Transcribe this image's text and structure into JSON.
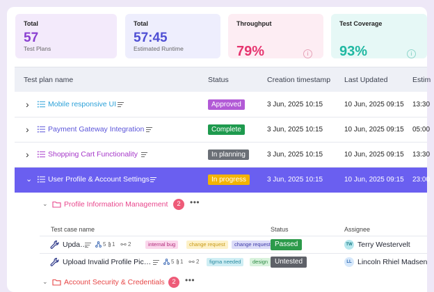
{
  "stats": {
    "total_plans": {
      "label": "Total",
      "value": "57",
      "sub": "Test Plans"
    },
    "total_runtime": {
      "label": "Total",
      "value": "57:45",
      "sub": "Estimated Runtime"
    },
    "throughput": {
      "label": "Throughput",
      "value": "79%"
    },
    "coverage": {
      "label": "Test Coverage",
      "value": "93%"
    }
  },
  "info_glyph": "i",
  "table": {
    "headers": [
      "Test plan name",
      "Status",
      "Creation timestamp",
      "Last Updated",
      "Estim"
    ],
    "rows": [
      {
        "name": "Mobile responsive UI",
        "status": "Approved",
        "status_color": "#b25ad6",
        "name_color": "#2aa0d8",
        "created": "3 Jun, 2025 10:15",
        "updated": "10 Jun, 2025 09:15",
        "estimate": "13:30",
        "chevron": "›"
      },
      {
        "name": "Payment Gateway Integration",
        "status": "Complete",
        "status_color": "#1e9a4e",
        "name_color": "#5a54d9",
        "created": "3 Jun, 2025 10:15",
        "updated": "10 Jun, 2025 09:15",
        "estimate": "05:00",
        "chevron": "›"
      },
      {
        "name": "Shopping Cart Functionality",
        "status": "In planning",
        "status_color": "#6b6f76",
        "name_color": "#a537c9",
        "created": "3 Jun, 2025 10:15",
        "updated": "10 Jun, 2025 09:15",
        "estimate": "13:30",
        "chevron": "›"
      },
      {
        "name": "User Profile & Account Settings",
        "status": "In progress",
        "status_color": "#f3b300",
        "name_color": "#ffffff",
        "created": "3 Jun, 2025 10:15",
        "updated": "10 Jun, 2025 09:15",
        "estimate": "23:00",
        "chevron": "⌄"
      }
    ]
  },
  "sections": [
    {
      "name": "Profile Information Management",
      "count": "2",
      "color": "#e8468c",
      "chevron": "⌄",
      "more": "•••"
    },
    {
      "name": "Account Security & Credentials",
      "count": "2",
      "color": "#e64545",
      "chevron": "⌄",
      "more": "•••"
    }
  ],
  "test_cases": {
    "headers": [
      "Test case name",
      "Status",
      "Assignee"
    ],
    "rows": [
      {
        "name": "Upda…",
        "steps": "5",
        "attachments": "1",
        "links": "2",
        "tags": [
          {
            "label": "internal bug",
            "bg": "#fbd7ec",
            "fg": "#b02b7a"
          },
          {
            "label": "change request",
            "bg": "#fdf1c8",
            "fg": "#c89a14"
          },
          {
            "label": "change request",
            "bg": "#dcdcf8",
            "fg": "#3d3aa8"
          }
        ],
        "status": "Passed",
        "status_color": "#2c9a4a",
        "assignee": "Terry Westervelt",
        "initials": "TW",
        "avatar_bg": "#b8e8ee",
        "avatar_fg": "#1a7a86"
      },
      {
        "name": "Upload Invalid Profile Pic…",
        "steps": "5",
        "attachments": "1",
        "links": "2",
        "tags": [
          {
            "label": "figma needed",
            "bg": "#cfeef4",
            "fg": "#2a8aa0"
          },
          {
            "label": "design",
            "bg": "#d8f2dc",
            "fg": "#2f8b46"
          }
        ],
        "status": "Untested",
        "status_color": "#5e6168",
        "assignee": "Lincoln Rhiel Madsen",
        "initials": "LL",
        "avatar_bg": "#d6e8fb",
        "avatar_fg": "#2a66b0"
      }
    ]
  },
  "colors": {
    "accent": "#6a5ff0",
    "purple": "#8a3fd1",
    "indigo": "#4f4fd4",
    "pink": "#e6356f",
    "teal": "#20b8a2"
  }
}
